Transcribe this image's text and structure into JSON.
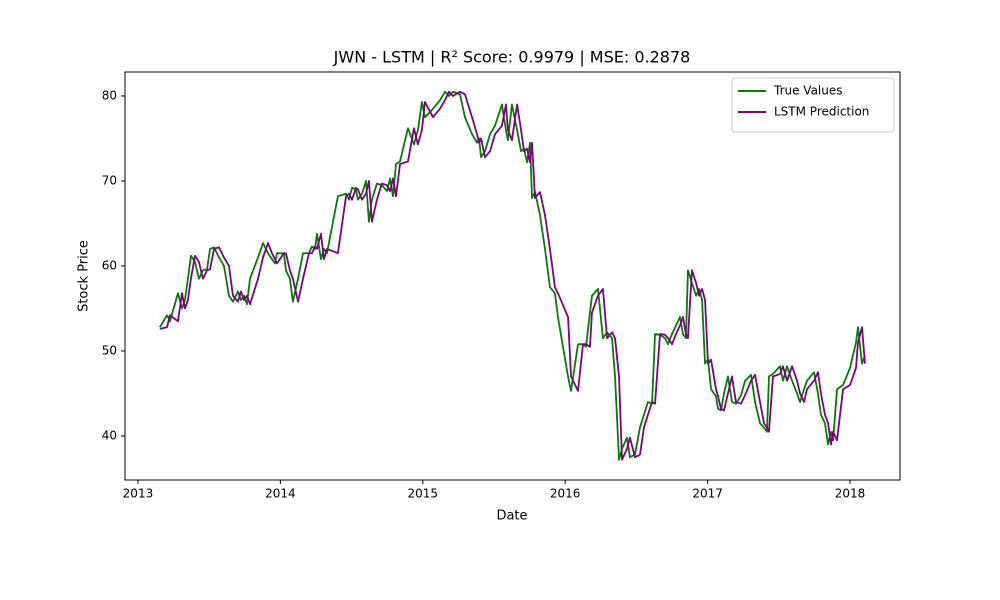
{
  "chart_data": {
    "type": "line",
    "title": "JWN - LSTM | R² Score: 0.9979 | MSE: 0.2878",
    "x_label": "Date",
    "y_label": "Stock Price",
    "x": [
      2013.154,
      2013.204,
      2013.225,
      2013.281,
      2013.309,
      2013.33,
      2013.351,
      2013.372,
      2013.4,
      2013.428,
      2013.456,
      2013.485,
      2013.506,
      2013.534,
      2013.569,
      2013.604,
      2013.639,
      2013.667,
      2013.702,
      2013.723,
      2013.744,
      2013.765,
      2013.787,
      2013.843,
      2013.878,
      2013.913,
      2013.941,
      2013.962,
      2013.976,
      2014.025,
      2014.039,
      2014.067,
      2014.088,
      2014.124,
      2014.159,
      2014.201,
      2014.222,
      2014.243,
      2014.257,
      2014.285,
      2014.306,
      2014.327,
      2014.404,
      2014.461,
      2014.482,
      2014.503,
      2014.531,
      2014.545,
      2014.573,
      2014.601,
      2014.622,
      2014.643,
      2014.678,
      2014.713,
      2014.749,
      2014.77,
      2014.791,
      2014.812,
      2014.84,
      2014.896,
      2014.938,
      2014.966,
      2014.994,
      2015.015,
      2015.072,
      2015.121,
      2015.156,
      2015.184,
      2015.212,
      2015.261,
      2015.296,
      2015.346,
      2015.381,
      2015.395,
      2015.409,
      2015.437,
      2015.472,
      2015.507,
      2015.556,
      2015.584,
      2015.598,
      2015.626,
      2015.662,
      2015.69,
      2015.711,
      2015.732,
      2015.753,
      2015.767,
      2015.788,
      2015.823,
      2015.858,
      2015.893,
      2015.928,
      2015.949,
      2016.02,
      2016.041,
      2016.09,
      2016.125,
      2016.146,
      2016.174,
      2016.188,
      2016.23,
      2016.265,
      2016.294,
      2016.329,
      2016.35,
      2016.378,
      2016.399,
      2016.434,
      2016.455,
      2016.49,
      2016.525,
      2016.553,
      2016.581,
      2016.61,
      2016.631,
      2016.666,
      2016.701,
      2016.722,
      2016.75,
      2016.778,
      2016.806,
      2016.827,
      2016.848,
      2016.862,
      2016.89,
      2016.919,
      2016.94,
      2016.961,
      2016.982,
      2017.003,
      2017.024,
      2017.059,
      2017.073,
      2017.094,
      2017.115,
      2017.143,
      2017.171,
      2017.199,
      2017.235,
      2017.263,
      2017.305,
      2017.333,
      2017.368,
      2017.396,
      2017.417,
      2017.431,
      2017.459,
      2017.508,
      2017.529,
      2017.558,
      2017.593,
      2017.628,
      2017.649,
      2017.677,
      2017.698,
      2017.747,
      2017.775,
      2017.796,
      2017.824,
      2017.846,
      2017.867,
      2017.881,
      2017.909,
      2017.951,
      2018.0,
      2018.042,
      2018.056,
      2018.084,
      2018.105
    ],
    "series": [
      {
        "name": "True Values",
        "color": "#008000",
        "values": [
          52.8,
          54.2,
          53.5,
          56.8,
          55,
          56,
          58.5,
          61.2,
          60.5,
          58.5,
          59.5,
          59.6,
          62,
          62.2,
          61,
          60,
          56.5,
          55.8,
          57,
          56,
          56.5,
          55.5,
          58.5,
          61,
          62.7,
          61.5,
          60.8,
          60.3,
          61.5,
          61.5,
          59.5,
          58.5,
          55.8,
          58.5,
          61.5,
          61.5,
          62.3,
          62,
          63.8,
          60.8,
          62,
          61.5,
          68.2,
          68.5,
          67.8,
          69.2,
          69,
          67.8,
          68.5,
          70,
          65.2,
          67.8,
          69.7,
          69.5,
          68.8,
          70.3,
          68.2,
          72,
          72.3,
          76.2,
          74.3,
          76,
          79.3,
          77.5,
          78.5,
          79.5,
          80.5,
          80,
          80.5,
          80.2,
          77.5,
          75.5,
          74.5,
          75,
          72.8,
          73.5,
          75.5,
          76.5,
          79,
          76,
          74.8,
          79,
          76,
          73.5,
          73.8,
          72.2,
          74.5,
          68,
          68.7,
          66,
          62,
          57.5,
          56.8,
          54,
          47,
          45.3,
          50.8,
          50.8,
          50.5,
          54.5,
          56.5,
          57.3,
          51.5,
          52.2,
          51.5,
          47,
          37.2,
          38.5,
          39.8,
          37.5,
          37.8,
          41,
          42.5,
          44,
          43.8,
          52,
          51.9,
          51.5,
          50.8,
          52,
          53,
          54,
          52,
          51.5,
          59.5,
          58,
          56.5,
          57.3,
          56,
          48.5,
          49,
          45.5,
          44.7,
          43.2,
          43,
          45,
          47,
          44,
          43.8,
          44.8,
          46.5,
          47.2,
          44,
          41.5,
          41,
          40.5,
          47,
          47.3,
          48.2,
          46.5,
          48.2,
          46.5,
          45,
          44,
          45.5,
          46.5,
          47.5,
          45,
          42.5,
          41.5,
          39,
          40.5,
          39.5,
          45.5,
          46,
          48,
          51,
          52.8,
          48.5,
          49.5
        ]
      },
      {
        "name": "LSTM Prediction",
        "color": "#800080",
        "values": [
          52.6,
          52.8,
          54.2,
          53.5,
          56.8,
          55,
          56,
          58.5,
          61.2,
          60.5,
          58.5,
          59.5,
          59.6,
          62,
          62.2,
          61,
          60,
          56.5,
          55.8,
          57,
          56,
          56.5,
          55.5,
          58.5,
          61,
          62.7,
          61.5,
          60.8,
          60.3,
          61.5,
          61.5,
          59.5,
          58.5,
          55.8,
          58.5,
          61.5,
          61.5,
          62.3,
          62,
          63.8,
          60.8,
          62,
          61.5,
          68.2,
          68.5,
          67.8,
          69.2,
          69,
          67.8,
          68.5,
          70,
          65.2,
          67.8,
          69.7,
          69.5,
          68.8,
          70.3,
          68.2,
          72,
          72.3,
          76.2,
          74.3,
          76,
          79.3,
          77.5,
          78.5,
          79.5,
          80.5,
          80,
          80.5,
          80.2,
          77.5,
          75.5,
          74.5,
          75,
          72.8,
          73.5,
          75.5,
          76.5,
          79,
          76,
          74.8,
          79,
          76,
          73.5,
          73.8,
          72.2,
          74.5,
          68,
          68.7,
          66,
          62,
          57.5,
          56.8,
          54,
          47,
          45.3,
          50.8,
          50.8,
          50.5,
          54.5,
          56.5,
          57.3,
          51.5,
          52.2,
          51.5,
          47,
          37.2,
          38.5,
          39.8,
          37.5,
          37.8,
          41,
          42.5,
          44,
          43.8,
          52,
          51.9,
          51.5,
          50.8,
          52,
          53,
          54,
          52,
          51.5,
          59.5,
          58,
          56.5,
          57.3,
          56,
          48.5,
          49,
          45.5,
          44.7,
          43.2,
          43,
          45,
          47,
          44,
          43.8,
          44.8,
          46.5,
          47.2,
          44,
          41.5,
          41,
          40.5,
          47,
          47.3,
          48.2,
          46.5,
          48.2,
          46.5,
          45,
          44,
          45.5,
          46.5,
          47.5,
          45,
          42.5,
          41.5,
          39,
          40.5,
          39.5,
          45.5,
          46,
          48,
          51,
          52.8,
          48.5
        ]
      }
    ],
    "xlim": [
      2012.909,
      2018.351
    ],
    "ylim": [
      34.82,
      82.82
    ],
    "xticks": [
      2013,
      2014,
      2015,
      2016,
      2017,
      2018
    ],
    "yticks": [
      40,
      50,
      60,
      70,
      80
    ],
    "legend": "upper right",
    "grid": false
  }
}
